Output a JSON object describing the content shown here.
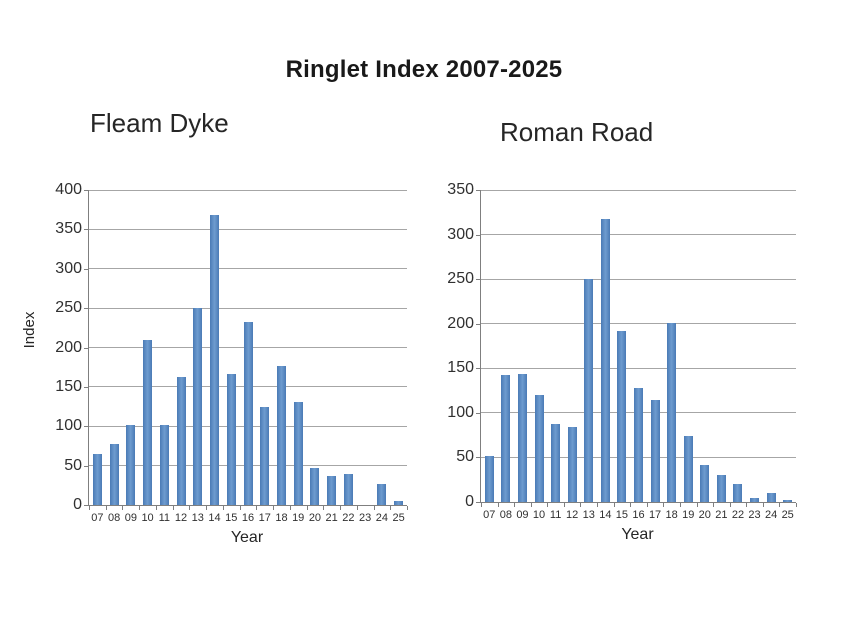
{
  "page": {
    "title": "Ringlet Index 2007-2025"
  },
  "colors": {
    "bar": "#4f81bd",
    "gridline": "#a6a6a6",
    "axis": "#7f7f7f",
    "text": "#262626"
  },
  "chart_data": [
    {
      "type": "bar",
      "title": "Fleam Dyke",
      "xlabel": "Year",
      "ylabel": "Index",
      "categories": [
        "07",
        "08",
        "09",
        "10",
        "11",
        "12",
        "13",
        "14",
        "15",
        "16",
        "17",
        "18",
        "19",
        "20",
        "21",
        "22",
        "23",
        "24",
        "25"
      ],
      "values": [
        65,
        78,
        101,
        210,
        102,
        163,
        250,
        368,
        167,
        232,
        125,
        176,
        131,
        47,
        37,
        40,
        0,
        27,
        5
      ],
      "ylim": [
        0,
        400
      ],
      "ytick_step": 50,
      "grid": true,
      "legend": "none"
    },
    {
      "type": "bar",
      "title": "Roman Road",
      "xlabel": "Year",
      "ylabel": "",
      "categories": [
        "07",
        "08",
        "09",
        "10",
        "11",
        "12",
        "13",
        "14",
        "15",
        "16",
        "17",
        "18",
        "19",
        "20",
        "21",
        "22",
        "23",
        "24",
        "25"
      ],
      "values": [
        52,
        143,
        144,
        120,
        87,
        84,
        250,
        318,
        192,
        128,
        114,
        201,
        74,
        42,
        30,
        20,
        5,
        10,
        2
      ],
      "ylim": [
        0,
        350
      ],
      "ytick_step": 50,
      "grid": true,
      "legend": "none"
    }
  ]
}
